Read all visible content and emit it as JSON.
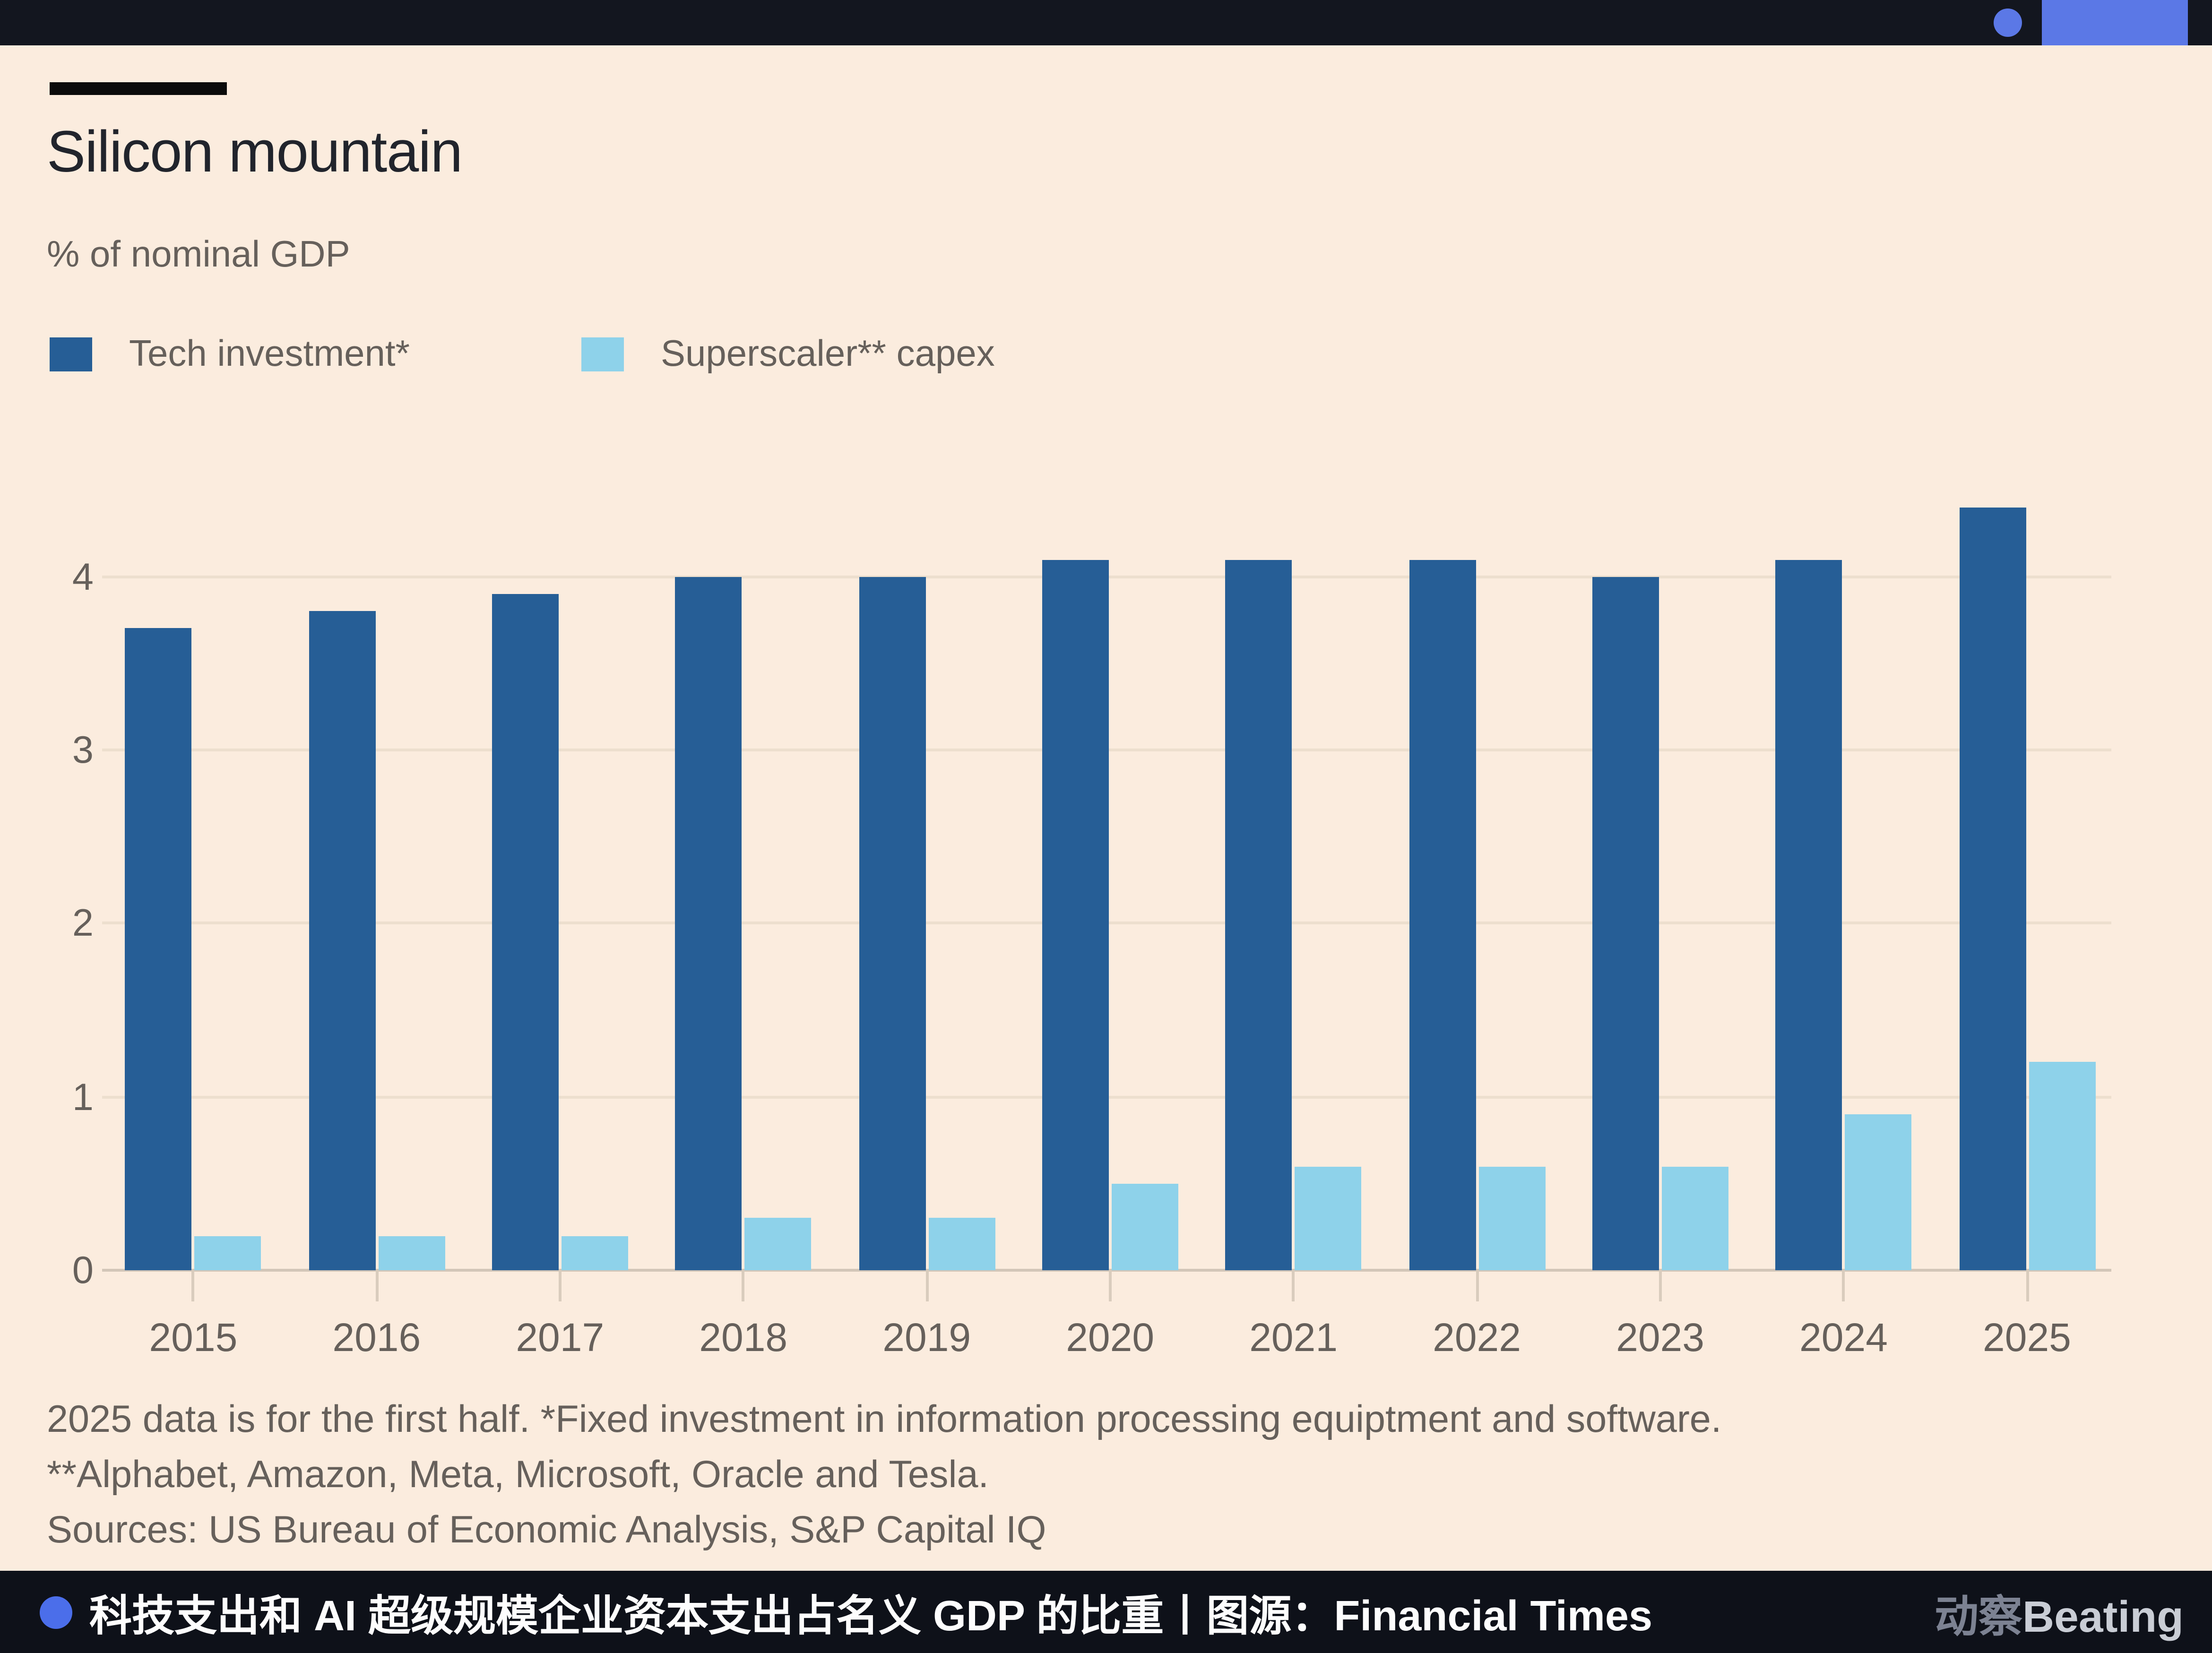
{
  "top_bar": {
    "background": "#13161f",
    "accent_blue": "#5b78e6"
  },
  "chart": {
    "title": "Silicon mountain",
    "subtitle": "% of nominal GDP",
    "legend": [
      {
        "label": "Tech investment*",
        "color": "#265e96"
      },
      {
        "label": "Superscaler** capex",
        "color": "#8ed2ea"
      }
    ],
    "footnotes": [
      "2025 data is for the first half. *Fixed investment in information processing equiptment and software.",
      "**Alphabet, Amazon, Meta, Microsoft, Oracle and Tesla.",
      "Sources: US Bureau of Economic Analysis, S&P Capital IQ"
    ]
  },
  "chart_data": {
    "type": "bar",
    "title": "Silicon mountain",
    "subtitle": "% of nominal GDP",
    "categories": [
      "2015",
      "2016",
      "2017",
      "2018",
      "2019",
      "2020",
      "2021",
      "2022",
      "2023",
      "2024",
      "2025"
    ],
    "series": [
      {
        "name": "Tech investment*",
        "color": "#265e96",
        "values": [
          3.7,
          3.8,
          3.9,
          4.0,
          4.0,
          4.1,
          4.1,
          4.1,
          4.0,
          4.1,
          4.4
        ]
      },
      {
        "name": "Superscaler** capex",
        "color": "#8ed2ea",
        "values": [
          0.2,
          0.2,
          0.2,
          0.3,
          0.3,
          0.5,
          0.6,
          0.6,
          0.6,
          0.9,
          1.2
        ]
      }
    ],
    "ylim": [
      0,
      4.5
    ],
    "yticks": [
      0,
      1,
      2,
      3,
      4
    ],
    "grid": true,
    "legend_position": "top-left",
    "xlabel": "",
    "ylabel": "% of nominal GDP"
  },
  "caption_bar": {
    "text": "科技支出和 AI 超级规模企业资本支出占名义 GDP 的比重丨图源：Financial Times",
    "watermark_cn": "动察",
    "watermark_en": "Beating",
    "dot_color": "#4b6eea",
    "background": "#0e1119"
  },
  "colors": {
    "page_background": "#fbecde",
    "gridline": "#eddfce",
    "baseline": "#d3c6b8",
    "axis_text": "#66605b",
    "title_text": "#21242c"
  }
}
